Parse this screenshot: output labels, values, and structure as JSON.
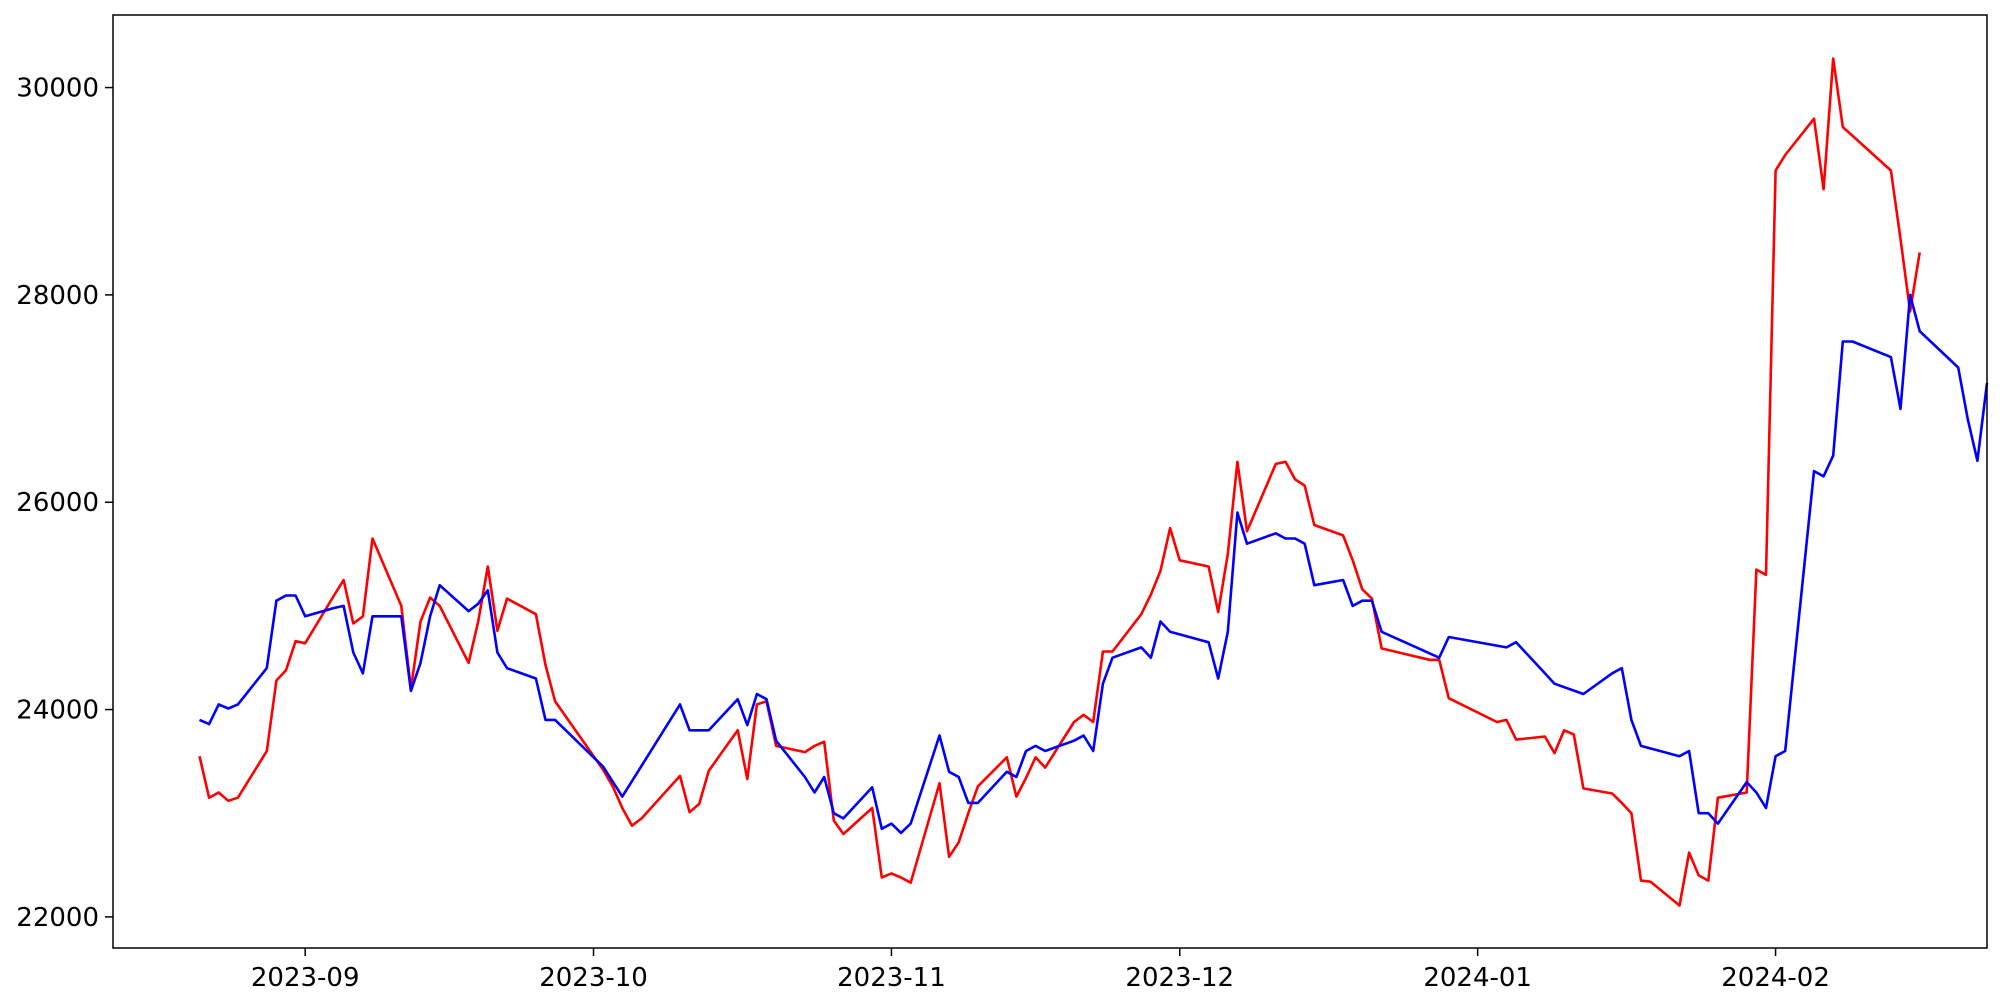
{
  "chart_data": {
    "type": "line",
    "title": "",
    "xlabel": "",
    "ylabel": "",
    "x_ticks": [
      "2023-09",
      "2023-10",
      "2023-11",
      "2023-12",
      "2024-01",
      "2024-02"
    ],
    "y_ticks": [
      "22000",
      "24000",
      "26000",
      "28000",
      "30000"
    ],
    "xlim": [
      "2023-08-12",
      "2024-02-23"
    ],
    "ylim": [
      21700,
      30700
    ],
    "grid": false,
    "colors": {
      "red_series": "#ff0000",
      "blue_series": "#0000ff"
    },
    "series": [
      {
        "color": "#ff0000",
        "points": [
          [
            "2023-08-21",
            23550
          ],
          [
            "2023-08-22",
            23150
          ],
          [
            "2023-08-23",
            23200
          ],
          [
            "2023-08-24",
            23120
          ],
          [
            "2023-08-25",
            23150
          ],
          [
            "2023-08-28",
            23600
          ],
          [
            "2023-08-29",
            24280
          ],
          [
            "2023-08-30",
            24380
          ],
          [
            "2023-08-31",
            24660
          ],
          [
            "2023-09-01",
            24640
          ],
          [
            "2023-09-04",
            25100
          ],
          [
            "2023-09-05",
            25250
          ],
          [
            "2023-09-06",
            24830
          ],
          [
            "2023-09-07",
            24900
          ],
          [
            "2023-09-08",
            25650
          ],
          [
            "2023-09-11",
            25000
          ],
          [
            "2023-09-12",
            24200
          ],
          [
            "2023-09-13",
            24850
          ],
          [
            "2023-09-14",
            25080
          ],
          [
            "2023-09-15",
            25000
          ],
          [
            "2023-09-18",
            24450
          ],
          [
            "2023-09-19",
            24850
          ],
          [
            "2023-09-20",
            25380
          ],
          [
            "2023-09-21",
            24760
          ],
          [
            "2023-09-22",
            25070
          ],
          [
            "2023-09-25",
            24920
          ],
          [
            "2023-09-26",
            24430
          ],
          [
            "2023-09-27",
            24080
          ],
          [
            "2023-10-02",
            23420
          ],
          [
            "2023-10-03",
            23260
          ],
          [
            "2023-10-04",
            23050
          ],
          [
            "2023-10-05",
            22880
          ],
          [
            "2023-10-06",
            22950
          ],
          [
            "2023-10-10",
            23360
          ],
          [
            "2023-10-11",
            23010
          ],
          [
            "2023-10-12",
            23090
          ],
          [
            "2023-10-13",
            23410
          ],
          [
            "2023-10-16",
            23800
          ],
          [
            "2023-10-17",
            23330
          ],
          [
            "2023-10-18",
            24050
          ],
          [
            "2023-10-19",
            24080
          ],
          [
            "2023-10-20",
            23650
          ],
          [
            "2023-10-23",
            23590
          ],
          [
            "2023-10-24",
            23650
          ],
          [
            "2023-10-25",
            23690
          ],
          [
            "2023-10-26",
            22930
          ],
          [
            "2023-10-27",
            22800
          ],
          [
            "2023-10-30",
            23050
          ],
          [
            "2023-10-31",
            22380
          ],
          [
            "2023-11-01",
            22420
          ],
          [
            "2023-11-02",
            22380
          ],
          [
            "2023-11-03",
            22330
          ],
          [
            "2023-11-06",
            23290
          ],
          [
            "2023-11-07",
            22580
          ],
          [
            "2023-11-08",
            22720
          ],
          [
            "2023-11-09",
            23000
          ],
          [
            "2023-11-10",
            23260
          ],
          [
            "2023-11-13",
            23540
          ],
          [
            "2023-11-14",
            23160
          ],
          [
            "2023-11-15",
            23340
          ],
          [
            "2023-11-16",
            23540
          ],
          [
            "2023-11-17",
            23440
          ],
          [
            "2023-11-20",
            23880
          ],
          [
            "2023-11-21",
            23950
          ],
          [
            "2023-11-22",
            23880
          ],
          [
            "2023-11-23",
            24560
          ],
          [
            "2023-11-24",
            24560
          ],
          [
            "2023-11-27",
            24920
          ],
          [
            "2023-11-28",
            25110
          ],
          [
            "2023-11-29",
            25340
          ],
          [
            "2023-11-30",
            25750
          ],
          [
            "2023-12-01",
            25440
          ],
          [
            "2023-12-04",
            25380
          ],
          [
            "2023-12-05",
            24940
          ],
          [
            "2023-12-06",
            25500
          ],
          [
            "2023-12-07",
            26390
          ],
          [
            "2023-12-08",
            25720
          ],
          [
            "2023-12-11",
            26370
          ],
          [
            "2023-12-12",
            26390
          ],
          [
            "2023-12-13",
            26220
          ],
          [
            "2023-12-14",
            26160
          ],
          [
            "2023-12-15",
            25780
          ],
          [
            "2023-12-18",
            25680
          ],
          [
            "2023-12-19",
            25440
          ],
          [
            "2023-12-20",
            25160
          ],
          [
            "2023-12-21",
            25070
          ],
          [
            "2023-12-22",
            24590
          ],
          [
            "2023-12-27",
            24480
          ],
          [
            "2023-12-28",
            24480
          ],
          [
            "2023-12-29",
            24110
          ],
          [
            "2024-01-03",
            23880
          ],
          [
            "2024-01-04",
            23900
          ],
          [
            "2024-01-05",
            23710
          ],
          [
            "2024-01-08",
            23740
          ],
          [
            "2024-01-09",
            23580
          ],
          [
            "2024-01-10",
            23800
          ],
          [
            "2024-01-11",
            23760
          ],
          [
            "2024-01-12",
            23240
          ],
          [
            "2024-01-15",
            23190
          ],
          [
            "2024-01-16",
            23100
          ],
          [
            "2024-01-17",
            23000
          ],
          [
            "2024-01-18",
            22350
          ],
          [
            "2024-01-19",
            22340
          ],
          [
            "2024-01-22",
            22110
          ],
          [
            "2024-01-23",
            22620
          ],
          [
            "2024-01-24",
            22400
          ],
          [
            "2024-01-25",
            22350
          ],
          [
            "2024-01-26",
            23150
          ],
          [
            "2024-01-29",
            23200
          ],
          [
            "2024-01-30",
            25350
          ],
          [
            "2024-01-31",
            25300
          ],
          [
            "2024-02-01",
            29200
          ],
          [
            "2024-02-02",
            29350
          ],
          [
            "2024-02-05",
            29700
          ],
          [
            "2024-02-06",
            29020
          ],
          [
            "2024-02-07",
            30280
          ],
          [
            "2024-02-08",
            29620
          ],
          [
            "2024-02-13",
            29200
          ],
          [
            "2024-02-14",
            28540
          ],
          [
            "2024-02-15",
            27840
          ],
          [
            "2024-02-16",
            28410
          ]
        ]
      },
      {
        "color": "#0000ff",
        "points": [
          [
            "2023-08-21",
            23900
          ],
          [
            "2023-08-22",
            23860
          ],
          [
            "2023-08-23",
            24050
          ],
          [
            "2023-08-24",
            24010
          ],
          [
            "2023-08-25",
            24050
          ],
          [
            "2023-08-28",
            24400
          ],
          [
            "2023-08-29",
            25050
          ],
          [
            "2023-08-30",
            25100
          ],
          [
            "2023-08-31",
            25100
          ],
          [
            "2023-09-01",
            24900
          ],
          [
            "2023-09-04",
            24980
          ],
          [
            "2023-09-05",
            25000
          ],
          [
            "2023-09-06",
            24550
          ],
          [
            "2023-09-07",
            24350
          ],
          [
            "2023-09-08",
            24900
          ],
          [
            "2023-09-11",
            24900
          ],
          [
            "2023-09-12",
            24180
          ],
          [
            "2023-09-13",
            24450
          ],
          [
            "2023-09-14",
            24900
          ],
          [
            "2023-09-15",
            25200
          ],
          [
            "2023-09-18",
            24950
          ],
          [
            "2023-09-19",
            25020
          ],
          [
            "2023-09-20",
            25150
          ],
          [
            "2023-09-21",
            24550
          ],
          [
            "2023-09-22",
            24400
          ],
          [
            "2023-09-25",
            24300
          ],
          [
            "2023-09-26",
            23900
          ],
          [
            "2023-09-27",
            23900
          ],
          [
            "2023-10-02",
            23450
          ],
          [
            "2023-10-04",
            23160
          ],
          [
            "2023-10-10",
            24050
          ],
          [
            "2023-10-11",
            23800
          ],
          [
            "2023-10-13",
            23800
          ],
          [
            "2023-10-16",
            24100
          ],
          [
            "2023-10-17",
            23850
          ],
          [
            "2023-10-18",
            24150
          ],
          [
            "2023-10-19",
            24100
          ],
          [
            "2023-10-20",
            23700
          ],
          [
            "2023-10-23",
            23350
          ],
          [
            "2023-10-24",
            23200
          ],
          [
            "2023-10-25",
            23350
          ],
          [
            "2023-10-26",
            23000
          ],
          [
            "2023-10-27",
            22950
          ],
          [
            "2023-10-30",
            23250
          ],
          [
            "2023-10-31",
            22850
          ],
          [
            "2023-11-01",
            22900
          ],
          [
            "2023-11-02",
            22810
          ],
          [
            "2023-11-03",
            22900
          ],
          [
            "2023-11-06",
            23750
          ],
          [
            "2023-11-07",
            23400
          ],
          [
            "2023-11-08",
            23350
          ],
          [
            "2023-11-09",
            23100
          ],
          [
            "2023-11-10",
            23100
          ],
          [
            "2023-11-13",
            23400
          ],
          [
            "2023-11-14",
            23350
          ],
          [
            "2023-11-15",
            23600
          ],
          [
            "2023-11-16",
            23650
          ],
          [
            "2023-11-17",
            23600
          ],
          [
            "2023-11-20",
            23700
          ],
          [
            "2023-11-21",
            23750
          ],
          [
            "2023-11-22",
            23600
          ],
          [
            "2023-11-23",
            24250
          ],
          [
            "2023-11-24",
            24500
          ],
          [
            "2023-11-27",
            24600
          ],
          [
            "2023-11-28",
            24500
          ],
          [
            "2023-11-29",
            24850
          ],
          [
            "2023-11-30",
            24750
          ],
          [
            "2023-12-04",
            24650
          ],
          [
            "2023-12-05",
            24300
          ],
          [
            "2023-12-06",
            24750
          ],
          [
            "2023-12-07",
            25900
          ],
          [
            "2023-12-08",
            25600
          ],
          [
            "2023-12-11",
            25700
          ],
          [
            "2023-12-12",
            25650
          ],
          [
            "2023-12-13",
            25650
          ],
          [
            "2023-12-14",
            25600
          ],
          [
            "2023-12-15",
            25200
          ],
          [
            "2023-12-18",
            25250
          ],
          [
            "2023-12-19",
            25000
          ],
          [
            "2023-12-20",
            25050
          ],
          [
            "2023-12-21",
            25050
          ],
          [
            "2023-12-22",
            24750
          ],
          [
            "2023-12-28",
            24500
          ],
          [
            "2023-12-29",
            24700
          ],
          [
            "2024-01-04",
            24600
          ],
          [
            "2024-01-05",
            24650
          ],
          [
            "2024-01-08",
            24350
          ],
          [
            "2024-01-09",
            24250
          ],
          [
            "2024-01-12",
            24150
          ],
          [
            "2024-01-15",
            24350
          ],
          [
            "2024-01-16",
            24400
          ],
          [
            "2024-01-17",
            23900
          ],
          [
            "2024-01-18",
            23650
          ],
          [
            "2024-01-22",
            23550
          ],
          [
            "2024-01-23",
            23600
          ],
          [
            "2024-01-24",
            23000
          ],
          [
            "2024-01-25",
            23000
          ],
          [
            "2024-01-26",
            22900
          ],
          [
            "2024-01-29",
            23300
          ],
          [
            "2024-01-30",
            23200
          ],
          [
            "2024-01-31",
            23050
          ],
          [
            "2024-02-01",
            23550
          ],
          [
            "2024-02-02",
            23600
          ],
          [
            "2024-02-05",
            26300
          ],
          [
            "2024-02-06",
            26250
          ],
          [
            "2024-02-07",
            26450
          ],
          [
            "2024-02-08",
            27550
          ],
          [
            "2024-02-09",
            27550
          ],
          [
            "2024-02-13",
            27400
          ],
          [
            "2024-02-14",
            26900
          ],
          [
            "2024-02-15",
            28000
          ],
          [
            "2024-02-16",
            27650
          ],
          [
            "2024-02-20",
            27300
          ],
          [
            "2024-02-21",
            26800
          ],
          [
            "2024-02-22",
            26400
          ],
          [
            "2024-02-23",
            27150
          ]
        ]
      }
    ]
  }
}
